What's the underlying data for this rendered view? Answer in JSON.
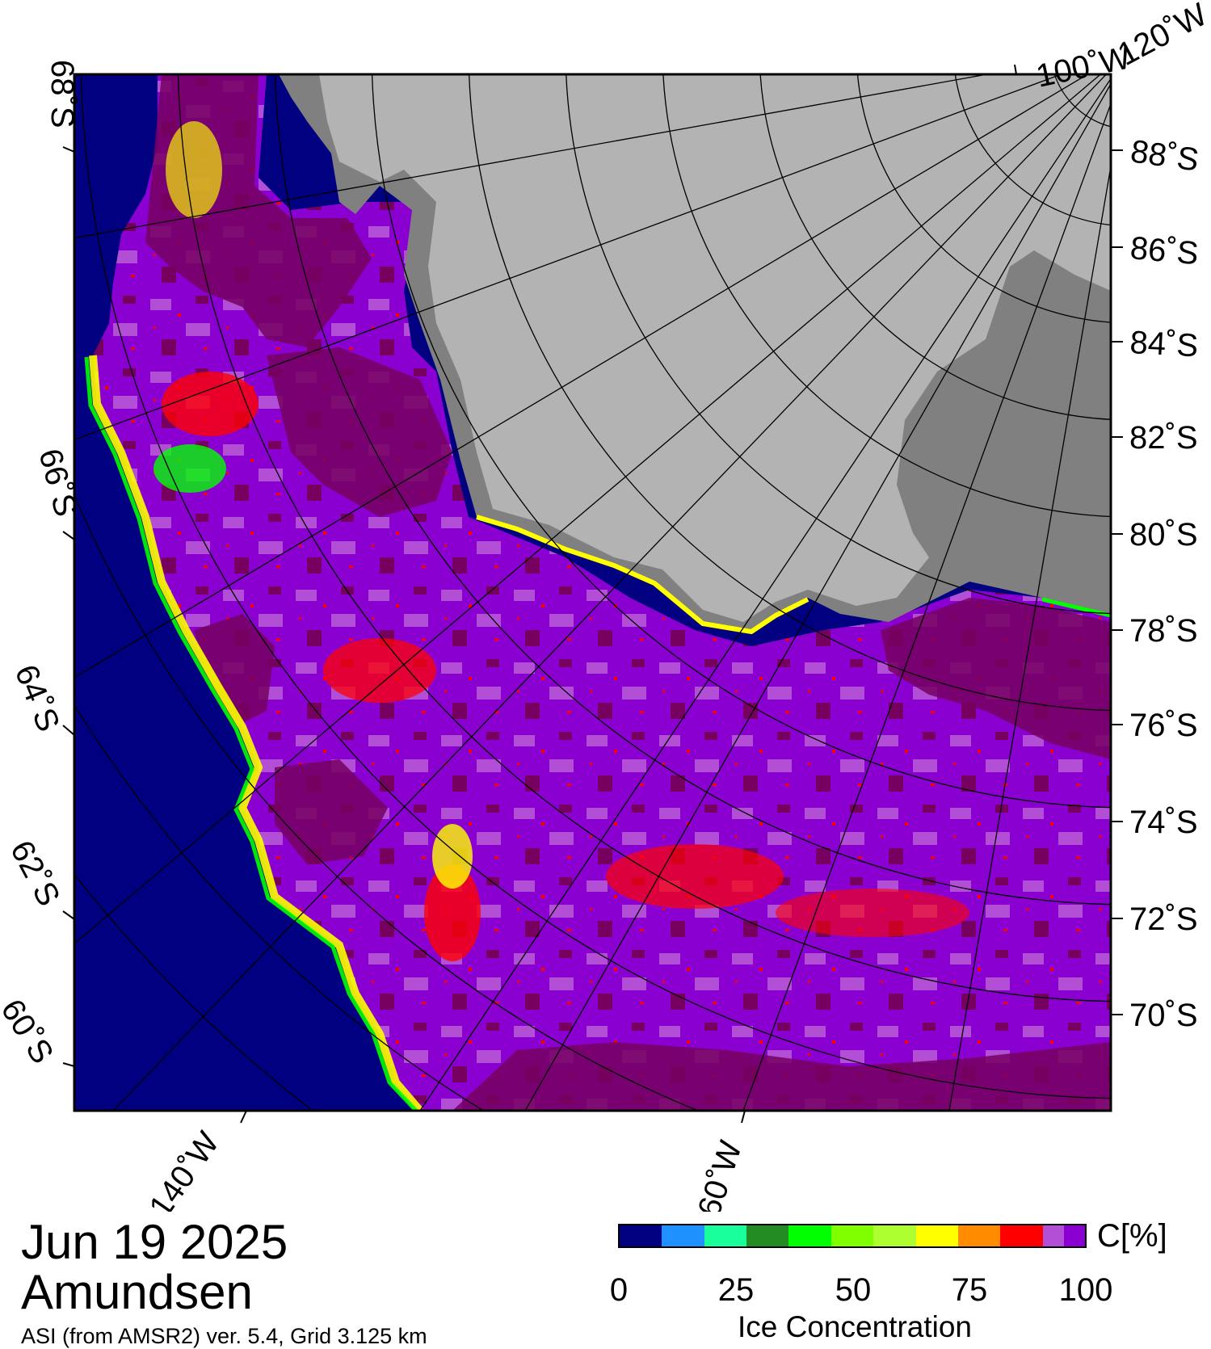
{
  "map": {
    "date": "Jun 19 2025",
    "region": "Amundsen",
    "product": "ASI (from AMSR2) ver. 5.4,  Grid 3.125 km",
    "lat_labels": [
      "88˚S",
      "86˚S",
      "84˚S",
      "82˚S",
      "80˚S",
      "78˚S",
      "76˚S",
      "74˚S",
      "72˚S",
      "70˚S",
      "60˚S",
      "62˚S",
      "64˚S",
      "66˚S",
      "68˚S"
    ],
    "lon_labels": [
      "140˚W",
      "160˚W",
      "100˚W",
      "120˚W"
    ],
    "colors": {
      "open_water": "#000080",
      "land": "#b3b3b3",
      "ice_shelf": "#808080",
      "ice_high": "#760060",
      "ice_mid": "#8a00d0",
      "ice_light": "#b24fd6",
      "ice_red": "#ff0000",
      "ice_yellow": "#ffff00",
      "ice_green": "#00ff00"
    }
  },
  "colorbar": {
    "unit": "C[%]",
    "title": "Ice Concentration",
    "ticks": [
      "0",
      "25",
      "50",
      "75",
      "100"
    ],
    "colors": [
      "#000080",
      "#1e90ff",
      "#19ff9c",
      "#228b22",
      "#00ff00",
      "#7fff00",
      "#adff2f",
      "#ffff00",
      "#ff8c00",
      "#ff0000",
      "#b24fd6",
      "#8a00d0"
    ]
  }
}
